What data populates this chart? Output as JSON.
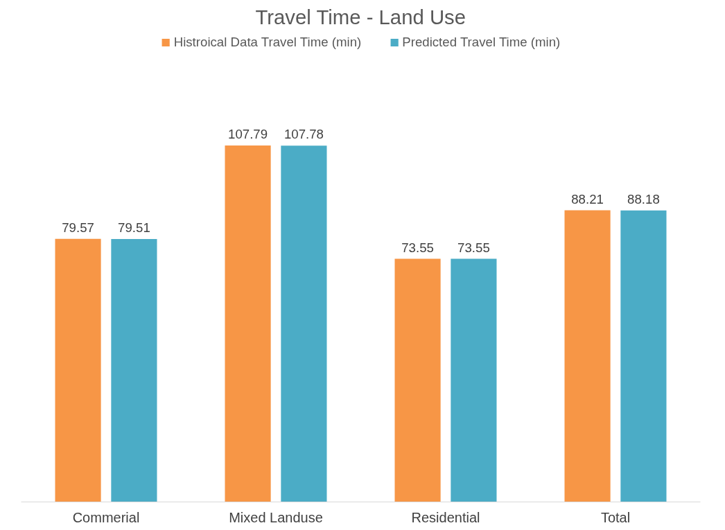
{
  "chart_data": {
    "type": "bar",
    "title": "Travel Time - Land Use",
    "categories": [
      "Commerial",
      "Mixed Landuse",
      "Residential",
      "Total"
    ],
    "series": [
      {
        "name": "Histroical Data Travel Time (min)",
        "color": "#f79646",
        "values": [
          79.57,
          107.79,
          73.55,
          88.21
        ]
      },
      {
        "name": "Predicted Travel Time (min)",
        "color": "#4bacc6",
        "values": [
          79.51,
          107.78,
          73.55,
          88.18
        ]
      }
    ],
    "data_labels": true,
    "legend": "top",
    "grid": false
  }
}
